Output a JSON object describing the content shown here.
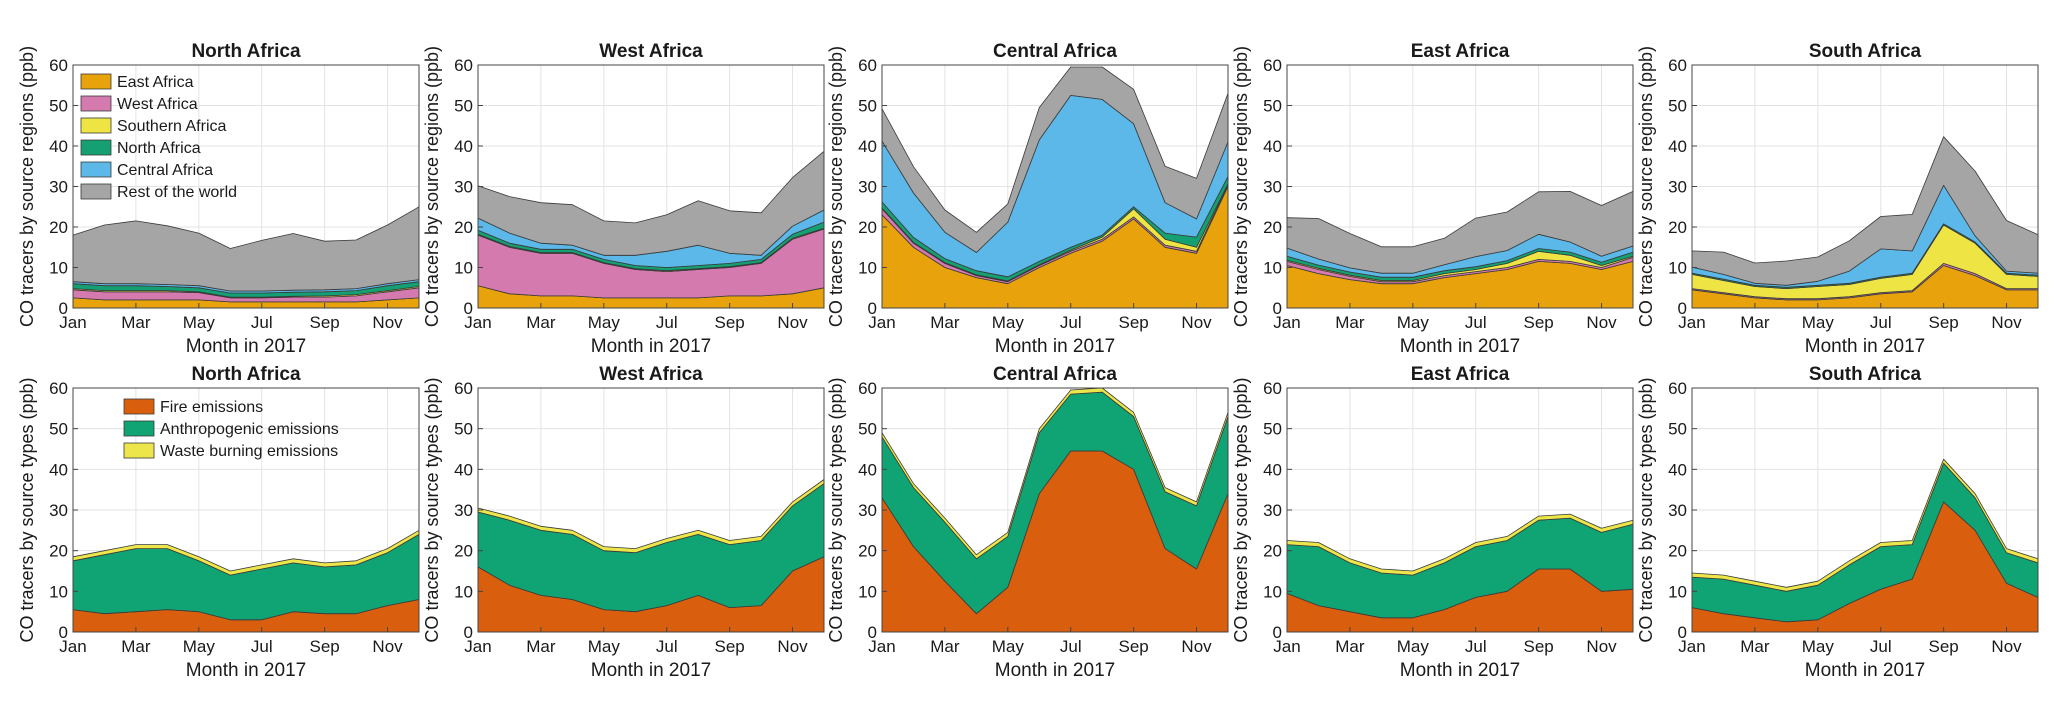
{
  "figure": {
    "xlabel": "Month in 2017",
    "x_tick_labels": [
      "Jan",
      "Mar",
      "May",
      "Jul",
      "Sep",
      "Nov"
    ],
    "y_tick_labels": [
      "0",
      "10",
      "20",
      "30",
      "40",
      "50",
      "60"
    ],
    "ylabel_regions": "CO tracers by source regions (ppb)",
    "ylabel_types": "CO tracers by source types (ppb)",
    "colors": {
      "East Africa": "#E8A20C",
      "West Africa": "#D47AAE",
      "Southern Africa": "#EEE443",
      "North Africa": "#14A073",
      "Central Africa": "#5BB8E8",
      "Rest of the world": "#A5A5A5",
      "Fire emissions": "#D95F0E",
      "Anthropogenic emissions": "#10A374",
      "Waste burning emissions": "#EDE64A"
    }
  },
  "legends": {
    "regions": [
      "East Africa",
      "West Africa",
      "Southern Africa",
      "North Africa",
      "Central Africa",
      "Rest of the world"
    ],
    "types": [
      "Fire emissions",
      "Anthropogenic emissions",
      "Waste burning emissions"
    ]
  },
  "chart_data": [
    {
      "type": "area",
      "row": "source regions",
      "title": "North Africa",
      "xlabel": "Month in 2017",
      "ylabel": "CO tracers by source regions (ppb)",
      "ylim": [
        0,
        60
      ],
      "categories": [
        "Jan",
        "Feb",
        "Mar",
        "Apr",
        "May",
        "Jun",
        "Jul",
        "Aug",
        "Sep",
        "Oct",
        "Nov",
        "Dec"
      ],
      "series": [
        {
          "name": "East Africa",
          "values": [
            2.5,
            2.0,
            2.0,
            2.0,
            2.0,
            1.5,
            1.5,
            1.5,
            1.5,
            1.5,
            2.0,
            2.5
          ]
        },
        {
          "name": "West Africa",
          "values": [
            2.0,
            2.0,
            2.0,
            2.0,
            1.8,
            1.0,
            1.0,
            1.2,
            1.2,
            1.5,
            2.0,
            2.5
          ]
        },
        {
          "name": "Southern Africa",
          "values": [
            0.3,
            0.3,
            0.3,
            0.3,
            0.2,
            0.2,
            0.2,
            0.2,
            0.3,
            0.3,
            0.3,
            0.3
          ]
        },
        {
          "name": "North Africa",
          "values": [
            1.2,
            1.2,
            1.2,
            1.0,
            1.0,
            1.0,
            1.0,
            1.0,
            1.0,
            1.0,
            1.2,
            1.2
          ]
        },
        {
          "name": "Central Africa",
          "values": [
            0.5,
            0.5,
            0.5,
            0.5,
            0.5,
            0.5,
            0.5,
            0.5,
            0.5,
            0.5,
            0.5,
            0.5
          ]
        },
        {
          "name": "Rest of the world",
          "values": [
            11.5,
            14.5,
            15.5,
            14.5,
            13.0,
            10.5,
            12.5,
            14.0,
            12.0,
            12.0,
            14.5,
            18.0
          ]
        }
      ]
    },
    {
      "type": "area",
      "row": "source regions",
      "title": "West Africa",
      "xlabel": "Month in 2017",
      "ylabel": "CO tracers by source regions (ppb)",
      "ylim": [
        0,
        60
      ],
      "categories": [
        "Jan",
        "Feb",
        "Mar",
        "Apr",
        "May",
        "Jun",
        "Jul",
        "Aug",
        "Sep",
        "Oct",
        "Nov",
        "Dec"
      ],
      "series": [
        {
          "name": "East Africa",
          "values": [
            5.5,
            3.5,
            3.0,
            3.0,
            2.5,
            2.5,
            2.5,
            2.5,
            3.0,
            3.0,
            3.5,
            5.0
          ]
        },
        {
          "name": "West Africa",
          "values": [
            12.5,
            11.5,
            10.5,
            10.5,
            8.5,
            7.0,
            6.5,
            7.0,
            7.0,
            8.0,
            13.5,
            14.5
          ]
        },
        {
          "name": "Southern Africa",
          "values": [
            0.2,
            0.2,
            0.2,
            0.2,
            0.2,
            0.2,
            0.2,
            0.2,
            0.2,
            0.2,
            0.2,
            0.2
          ]
        },
        {
          "name": "North Africa",
          "values": [
            1.0,
            0.8,
            0.8,
            0.8,
            0.8,
            0.8,
            0.8,
            0.8,
            0.8,
            0.8,
            1.0,
            1.5
          ]
        },
        {
          "name": "Central Africa",
          "values": [
            3.0,
            2.5,
            1.5,
            1.0,
            1.0,
            2.5,
            4.0,
            5.0,
            2.5,
            1.0,
            2.0,
            3.0
          ]
        },
        {
          "name": "Rest of the world",
          "values": [
            8.0,
            9.0,
            10.0,
            10.0,
            8.5,
            8.0,
            9.0,
            11.0,
            10.5,
            10.5,
            12.0,
            14.5
          ]
        }
      ]
    },
    {
      "type": "area",
      "row": "source regions",
      "title": "Central Africa",
      "xlabel": "Month in 2017",
      "ylabel": "CO tracers by source regions (ppb)",
      "ylim": [
        0,
        60
      ],
      "categories": [
        "Jan",
        "Feb",
        "Mar",
        "Apr",
        "May",
        "Jun",
        "Jul",
        "Aug",
        "Sep",
        "Oct",
        "Nov",
        "Dec"
      ],
      "series": [
        {
          "name": "East Africa",
          "values": [
            23.0,
            15.0,
            10.0,
            7.5,
            6.0,
            10.0,
            13.5,
            16.5,
            22.0,
            15.0,
            13.5,
            30.0
          ]
        },
        {
          "name": "West Africa",
          "values": [
            1.5,
            1.0,
            1.0,
            0.5,
            0.5,
            0.5,
            0.5,
            0.5,
            0.5,
            0.5,
            0.5,
            0.5
          ]
        },
        {
          "name": "Southern Africa",
          "values": [
            0.2,
            0.2,
            0.2,
            0.2,
            0.2,
            0.2,
            0.3,
            0.5,
            2.0,
            1.5,
            1.0,
            0.2
          ]
        },
        {
          "name": "North Africa",
          "values": [
            1.5,
            1.2,
            1.0,
            1.0,
            1.0,
            0.8,
            0.7,
            0.5,
            0.5,
            1.5,
            2.5,
            1.8
          ]
        },
        {
          "name": "Central Africa",
          "values": [
            15.0,
            11.0,
            6.5,
            4.5,
            13.5,
            30.0,
            37.5,
            33.5,
            20.5,
            7.5,
            4.5,
            8.5
          ]
        },
        {
          "name": "Rest of the world",
          "values": [
            8.0,
            6.5,
            5.5,
            5.0,
            4.5,
            8.0,
            7.0,
            8.0,
            8.5,
            9.0,
            10.0,
            12.0
          ]
        }
      ]
    },
    {
      "type": "area",
      "row": "source regions",
      "title": "East Africa",
      "xlabel": "Month in 2017",
      "ylabel": "CO tracers by source regions (ppb)",
      "ylim": [
        0,
        60
      ],
      "categories": [
        "Jan",
        "Feb",
        "Mar",
        "Apr",
        "May",
        "Jun",
        "Jul",
        "Aug",
        "Sep",
        "Oct",
        "Nov",
        "Dec"
      ],
      "series": [
        {
          "name": "East Africa",
          "values": [
            10.5,
            8.5,
            7.0,
            6.0,
            6.0,
            7.5,
            8.5,
            9.5,
            11.5,
            11.0,
            9.5,
            11.5
          ]
        },
        {
          "name": "West Africa",
          "values": [
            1.0,
            1.0,
            0.8,
            0.5,
            0.5,
            0.5,
            0.5,
            0.5,
            0.5,
            0.5,
            0.5,
            1.0
          ]
        },
        {
          "name": "Southern Africa",
          "values": [
            0.3,
            0.3,
            0.3,
            0.3,
            0.3,
            0.5,
            0.5,
            1.0,
            2.0,
            1.5,
            0.5,
            0.3
          ]
        },
        {
          "name": "North Africa",
          "values": [
            1.0,
            0.8,
            0.8,
            0.8,
            0.8,
            0.7,
            0.7,
            0.7,
            0.7,
            0.8,
            0.8,
            1.0
          ]
        },
        {
          "name": "Central Africa",
          "values": [
            2.0,
            1.5,
            1.0,
            1.0,
            1.0,
            1.5,
            2.5,
            2.5,
            3.5,
            2.5,
            1.5,
            1.5
          ]
        },
        {
          "name": "Rest of the world",
          "values": [
            7.5,
            10.0,
            8.5,
            6.5,
            6.5,
            6.5,
            9.5,
            9.5,
            10.5,
            12.5,
            12.5,
            13.5
          ]
        }
      ]
    },
    {
      "type": "area",
      "row": "source regions",
      "title": "South Africa",
      "xlabel": "Month in 2017",
      "ylabel": "CO tracers by source regions (ppb)",
      "ylim": [
        0,
        60
      ],
      "categories": [
        "Jan",
        "Feb",
        "Mar",
        "Apr",
        "May",
        "Jun",
        "Jul",
        "Aug",
        "Sep",
        "Oct",
        "Nov",
        "Dec"
      ],
      "series": [
        {
          "name": "East Africa",
          "values": [
            4.5,
            3.5,
            2.5,
            2.0,
            2.0,
            2.5,
            3.5,
            4.0,
            10.5,
            8.0,
            4.5,
            4.5
          ]
        },
        {
          "name": "West Africa",
          "values": [
            0.3,
            0.3,
            0.3,
            0.3,
            0.3,
            0.3,
            0.3,
            0.3,
            0.5,
            0.5,
            0.3,
            0.3
          ]
        },
        {
          "name": "Southern Africa",
          "values": [
            3.5,
            3.0,
            2.5,
            2.5,
            3.0,
            3.0,
            3.5,
            4.0,
            9.5,
            7.5,
            3.5,
            3.0
          ]
        },
        {
          "name": "North Africa",
          "values": [
            0.3,
            0.3,
            0.3,
            0.3,
            0.3,
            0.3,
            0.3,
            0.3,
            0.3,
            0.3,
            0.3,
            0.3
          ]
        },
        {
          "name": "Central Africa",
          "values": [
            1.5,
            1.2,
            0.5,
            0.5,
            1.0,
            3.0,
            7.0,
            5.5,
            9.5,
            1.5,
            0.5,
            0.5
          ]
        },
        {
          "name": "Rest of the world",
          "values": [
            4.0,
            5.5,
            5.0,
            6.0,
            6.0,
            7.5,
            8.0,
            9.0,
            12.0,
            16.0,
            12.5,
            9.5
          ]
        }
      ]
    },
    {
      "type": "area",
      "row": "source types",
      "title": "North Africa",
      "xlabel": "Month in 2017",
      "ylabel": "CO tracers by source types (ppb)",
      "ylim": [
        0,
        60
      ],
      "categories": [
        "Jan",
        "Feb",
        "Mar",
        "Apr",
        "May",
        "Jun",
        "Jul",
        "Aug",
        "Sep",
        "Oct",
        "Nov",
        "Dec"
      ],
      "series": [
        {
          "name": "Fire emissions",
          "values": [
            5.5,
            4.5,
            5.0,
            5.5,
            5.0,
            3.0,
            3.0,
            5.0,
            4.5,
            4.5,
            6.5,
            8.0
          ]
        },
        {
          "name": "Anthropogenic emissions",
          "values": [
            12.0,
            14.5,
            15.5,
            15.0,
            12.5,
            11.0,
            12.5,
            12.0,
            11.5,
            12.0,
            13.0,
            16.0
          ]
        },
        {
          "name": "Waste burning emissions",
          "values": [
            1.0,
            1.0,
            1.0,
            1.0,
            1.0,
            1.0,
            1.0,
            1.0,
            1.0,
            1.0,
            1.0,
            1.0
          ]
        }
      ]
    },
    {
      "type": "area",
      "row": "source types",
      "title": "West Africa",
      "xlabel": "Month in 2017",
      "ylabel": "CO tracers by source types (ppb)",
      "ylim": [
        0,
        60
      ],
      "categories": [
        "Jan",
        "Feb",
        "Mar",
        "Apr",
        "May",
        "Jun",
        "Jul",
        "Aug",
        "Sep",
        "Oct",
        "Nov",
        "Dec"
      ],
      "series": [
        {
          "name": "Fire emissions",
          "values": [
            16.0,
            11.5,
            9.0,
            8.0,
            5.5,
            5.0,
            6.5,
            9.0,
            6.0,
            6.5,
            15.0,
            18.5
          ]
        },
        {
          "name": "Anthropogenic emissions",
          "values": [
            13.5,
            16.0,
            16.0,
            16.0,
            14.5,
            14.5,
            15.5,
            15.0,
            15.5,
            16.0,
            16.0,
            18.0
          ]
        },
        {
          "name": "Waste burning emissions",
          "values": [
            1.0,
            1.0,
            1.0,
            1.0,
            1.0,
            1.0,
            1.0,
            1.0,
            1.0,
            1.0,
            1.0,
            1.0
          ]
        }
      ]
    },
    {
      "type": "area",
      "row": "source types",
      "title": "Central Africa",
      "xlabel": "Month in 2017",
      "ylabel": "CO tracers by source types (ppb)",
      "ylim": [
        0,
        60
      ],
      "categories": [
        "Jan",
        "Feb",
        "Mar",
        "Apr",
        "May",
        "Jun",
        "Jul",
        "Aug",
        "Sep",
        "Oct",
        "Nov",
        "Dec"
      ],
      "series": [
        {
          "name": "Fire emissions",
          "values": [
            33.0,
            21.0,
            12.5,
            4.5,
            11.0,
            34.0,
            44.5,
            44.5,
            40.0,
            20.5,
            15.5,
            34.0
          ]
        },
        {
          "name": "Anthropogenic emissions",
          "values": [
            15.0,
            14.5,
            14.5,
            13.5,
            12.5,
            15.0,
            14.0,
            14.5,
            13.0,
            14.0,
            15.5,
            19.0
          ]
        },
        {
          "name": "Waste burning emissions",
          "values": [
            1.0,
            1.0,
            1.0,
            1.0,
            1.0,
            1.0,
            1.0,
            1.0,
            1.0,
            1.0,
            1.0,
            1.0
          ]
        }
      ]
    },
    {
      "type": "area",
      "row": "source types",
      "title": "East Africa",
      "xlabel": "Month in 2017",
      "ylabel": "CO tracers by source types (ppb)",
      "ylim": [
        0,
        60
      ],
      "categories": [
        "Jan",
        "Feb",
        "Mar",
        "Apr",
        "May",
        "Jun",
        "Jul",
        "Aug",
        "Sep",
        "Oct",
        "Nov",
        "Dec"
      ],
      "series": [
        {
          "name": "Fire emissions",
          "values": [
            9.5,
            6.5,
            5.0,
            3.5,
            3.5,
            5.5,
            8.5,
            10.0,
            15.5,
            15.5,
            10.0,
            10.5
          ]
        },
        {
          "name": "Anthropogenic emissions",
          "values": [
            12.0,
            14.5,
            12.0,
            11.0,
            10.5,
            11.5,
            12.5,
            12.5,
            12.0,
            12.5,
            14.5,
            16.0
          ]
        },
        {
          "name": "Waste burning emissions",
          "values": [
            1.0,
            1.0,
            1.0,
            1.0,
            1.0,
            1.0,
            1.0,
            1.0,
            1.0,
            1.0,
            1.0,
            1.0
          ]
        }
      ]
    },
    {
      "type": "area",
      "row": "source types",
      "title": "South Africa",
      "xlabel": "Month in 2017",
      "ylabel": "CO tracers by source types (ppb)",
      "ylim": [
        0,
        60
      ],
      "categories": [
        "Jan",
        "Feb",
        "Mar",
        "Apr",
        "May",
        "Jun",
        "Jul",
        "Aug",
        "Sep",
        "Oct",
        "Nov",
        "Dec"
      ],
      "series": [
        {
          "name": "Fire emissions",
          "values": [
            6.0,
            4.5,
            3.5,
            2.5,
            3.0,
            7.0,
            10.5,
            13.0,
            32.0,
            25.0,
            12.0,
            8.5
          ]
        },
        {
          "name": "Anthropogenic emissions",
          "values": [
            7.5,
            8.5,
            8.0,
            7.5,
            8.5,
            9.5,
            10.5,
            8.5,
            9.5,
            8.0,
            7.5,
            8.5
          ]
        },
        {
          "name": "Waste burning emissions",
          "values": [
            1.0,
            1.0,
            1.0,
            1.0,
            1.0,
            1.0,
            1.0,
            1.0,
            1.0,
            1.0,
            1.0,
            1.0
          ]
        }
      ]
    }
  ]
}
